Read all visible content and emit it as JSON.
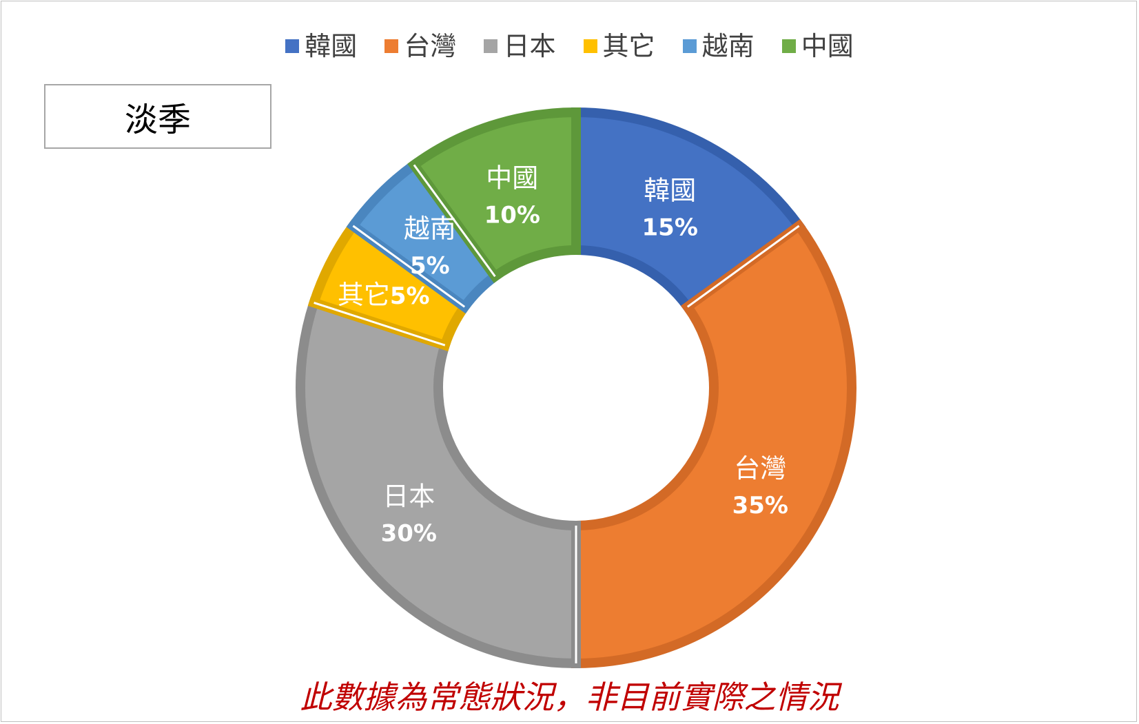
{
  "chart_data": {
    "type": "pie",
    "subtype": "donut",
    "season_label": "淡季",
    "footnote": "此數據為常態狀況，非目前實際之情況",
    "legend_position": "top",
    "slices": [
      {
        "name": "韓國",
        "value": 15,
        "value_label": "15%",
        "color": "#4472c4",
        "edge": "#3560ad"
      },
      {
        "name": "台灣",
        "value": 35,
        "value_label": "35%",
        "color": "#ed7d31",
        "edge": "#d36a26"
      },
      {
        "name": "日本",
        "value": 30,
        "value_label": "30%",
        "color": "#a5a5a5",
        "edge": "#8c8c8c"
      },
      {
        "name": "其它",
        "value": 5,
        "value_label": "5%",
        "color": "#ffc000",
        "edge": "#e0a800"
      },
      {
        "name": "越南",
        "value": 5,
        "value_label": "5%",
        "color": "#5b9bd5",
        "edge": "#4a86bf"
      },
      {
        "name": "中國",
        "value": 10,
        "value_label": "10%",
        "color": "#70ad47",
        "edge": "#5e983a"
      }
    ]
  }
}
